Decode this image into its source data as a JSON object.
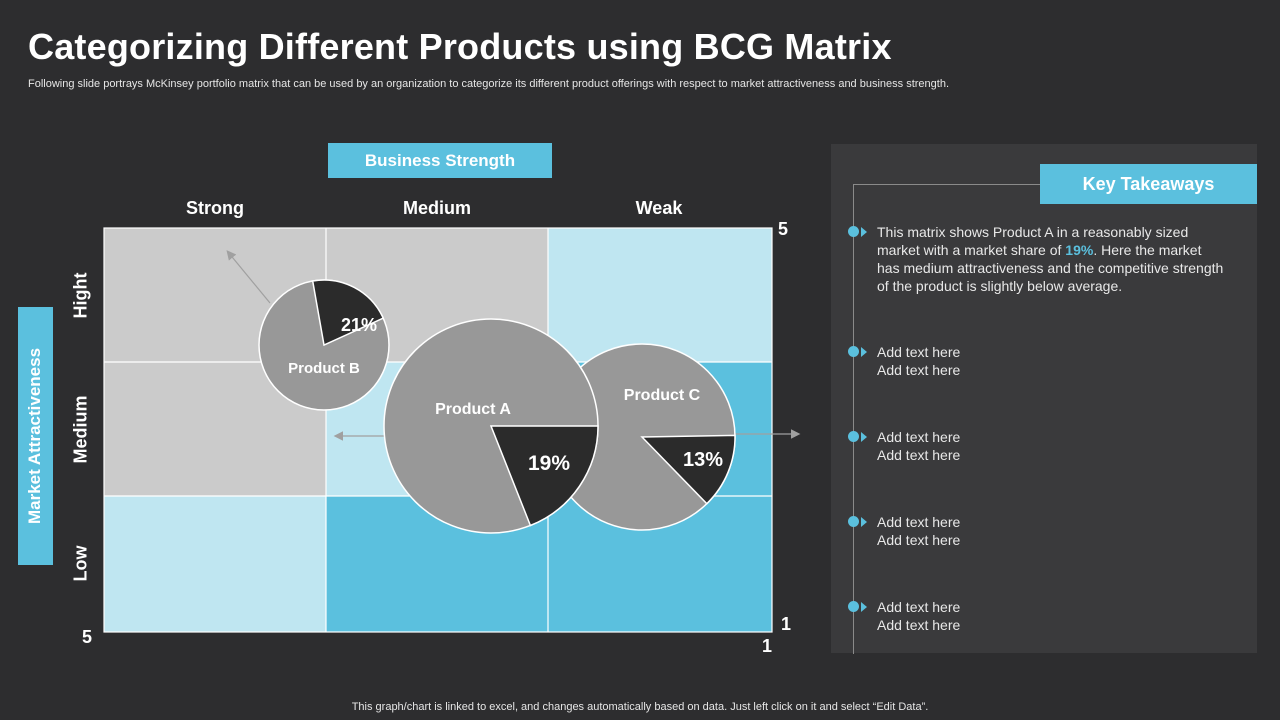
{
  "title": "Categorizing Different Products using BCG Matrix",
  "subtitle": "Following slide portrays  McKinsey portfolio matrix that can be used by an organization to categorize its different product offerings with respect to market attractiveness and business strength.",
  "business_strength_label": "Business Strength",
  "market_attractiveness_label": "Market Attractiveness",
  "columns": [
    "Strong",
    "Medium",
    "Weak"
  ],
  "rows": [
    "Hight",
    "Medium",
    "Low"
  ],
  "corners": {
    "top_right": "5",
    "bottom_right_y": "1",
    "bottom_right_x": "1",
    "bottom_left": "5"
  },
  "colors": {
    "accent": "#5bc0de",
    "light_blue": "#bfe6f1",
    "gray_cell": "#cbcbcb",
    "pie_gray": "#989898",
    "pie_dark": "#2b2b2b",
    "background": "#2d2d2f"
  },
  "chart_data": {
    "type": "bubble-pie",
    "products": [
      {
        "name": "Product A",
        "share_label": "19%",
        "share": 0.19
      },
      {
        "name": "Product B",
        "share_label": "21%",
        "share": 0.21
      },
      {
        "name": "Product C",
        "share_label": "13%",
        "share": 0.13
      }
    ]
  },
  "key_takeaways": {
    "heading": "Key Takeaways",
    "first": {
      "before": "This matrix shows Product A in a reasonably sized market with a market share of ",
      "highlight": "19%",
      "after": ". Here the market has medium attractiveness and the competitive strength of the product is slightly below average."
    },
    "items": [
      [
        "Add text here",
        "Add text here"
      ],
      [
        "Add text here",
        "Add text here"
      ],
      [
        "Add text here",
        "Add text here"
      ],
      [
        "Add text here",
        "Add text here"
      ]
    ]
  },
  "footer": "This graph/chart is linked to excel,  and changes automatically based on data. Just left click on it and select “Edit Data”."
}
